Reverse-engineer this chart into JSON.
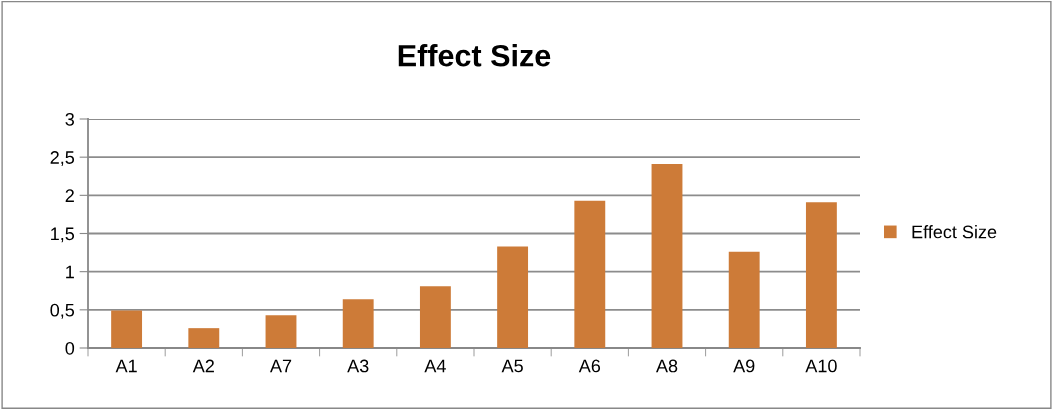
{
  "chart_data": {
    "type": "bar",
    "title": "Effect Size",
    "categories": [
      "A1",
      "A2",
      "A7",
      "A3",
      "A4",
      "A5",
      "A6",
      "A8",
      "A9",
      "A10"
    ],
    "series": [
      {
        "name": "Effect Size",
        "color": "#cd7b38",
        "values": [
          0.49,
          0.26,
          0.43,
          0.64,
          0.81,
          1.33,
          1.93,
          2.41,
          1.26,
          1.91
        ]
      }
    ],
    "ylim": [
      0,
      3
    ],
    "yticks": [
      0,
      {
        "value": 0.5,
        "label": "0,5"
      },
      1,
      {
        "value": 1.5,
        "label": "1,5"
      },
      2,
      {
        "value": 2.5,
        "label": "2,5"
      },
      3
    ],
    "grid": "y",
    "legend": "right"
  }
}
